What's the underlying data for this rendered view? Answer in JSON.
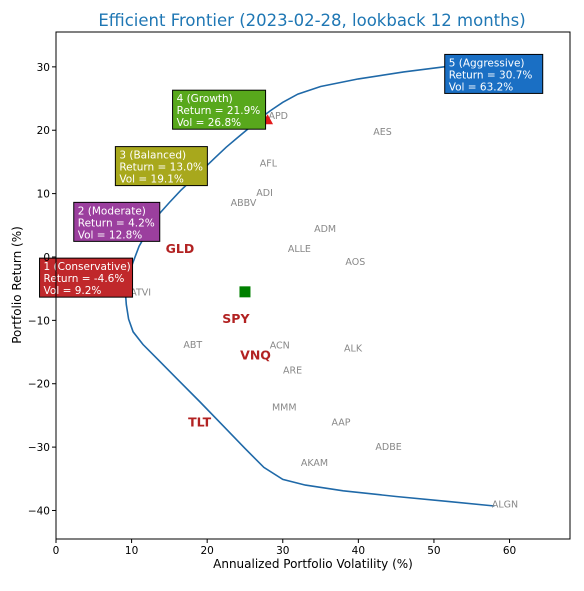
{
  "chart_data": {
    "type": "scatter",
    "title": "Efficient Frontier (2023-02-28, lookback 12 months)",
    "xlabel": "Annualized Portfolio Volatility (%)",
    "ylabel": "Portfolio Return (%)",
    "xlim": [
      0,
      68
    ],
    "ylim": [
      -44.5,
      35.5
    ],
    "xticks": [
      0,
      10,
      20,
      30,
      40,
      50,
      60
    ],
    "yticks": [
      -40,
      -30,
      -20,
      -10,
      0,
      10,
      20,
      30
    ],
    "grid": false,
    "colors": {
      "title": "#1f77b4",
      "frontier": "#1f69a8",
      "stock_label": "#888888",
      "etf_label": "#b22222",
      "marker_center": "#008000",
      "growth_triangle": "#e31a1c"
    },
    "frontier": {
      "x": [
        58.5,
        52,
        46,
        40,
        35,
        32,
        30,
        28.5,
        27,
        25.5,
        24,
        22.5,
        21,
        19.5,
        18,
        16.5,
        15,
        13.5,
        12.2,
        11,
        10.2,
        9.7,
        9.4,
        9.2,
        9.2,
        9.3,
        9.6,
        10.2,
        11.5,
        13.5,
        16,
        19,
        22,
        25,
        27.5,
        30,
        33,
        38,
        45,
        52,
        58
      ],
      "y": [
        30.8,
        30.1,
        29.2,
        28.1,
        26.9,
        25.7,
        24.4,
        23.2,
        21.9,
        20.3,
        18.8,
        17.3,
        15.6,
        13.9,
        12.2,
        10.5,
        8.6,
        6.6,
        4.2,
        1.7,
        -0.8,
        -2.5,
        -3.6,
        -4.6,
        -5.8,
        -7.5,
        -9.8,
        -11.8,
        -13.8,
        -16.2,
        -19.2,
        -22.8,
        -26.5,
        -30.2,
        -33.2,
        -35.1,
        -36.0,
        -36.9,
        -37.8,
        -38.6,
        -39.3
      ]
    },
    "stocks": [
      {
        "label": "APD",
        "x": 29.4,
        "y": 22.3
      },
      {
        "label": "AES",
        "x": 43.2,
        "y": 19.8
      },
      {
        "label": "AFL",
        "x": 28.1,
        "y": 14.8
      },
      {
        "label": "ADI",
        "x": 27.6,
        "y": 10.2
      },
      {
        "label": "ABBV",
        "x": 24.8,
        "y": 8.6
      },
      {
        "label": "ADM",
        "x": 35.6,
        "y": 4.5
      },
      {
        "label": "ALLE",
        "x": 32.2,
        "y": 1.3
      },
      {
        "label": "AOS",
        "x": 39.6,
        "y": -0.7
      },
      {
        "label": "ATVI",
        "x": 11.2,
        "y": -5.5
      },
      {
        "label": "ABT",
        "x": 18.1,
        "y": -13.8
      },
      {
        "label": "ACN",
        "x": 29.6,
        "y": -13.9
      },
      {
        "label": "ALK",
        "x": 39.3,
        "y": -14.4
      },
      {
        "label": "ARE",
        "x": 31.3,
        "y": -17.8
      },
      {
        "label": "MMM",
        "x": 30.2,
        "y": -23.7
      },
      {
        "label": "AAP",
        "x": 37.7,
        "y": -26.0
      },
      {
        "label": "ADBE",
        "x": 44.0,
        "y": -29.9
      },
      {
        "label": "AKAM",
        "x": 34.2,
        "y": -32.4
      },
      {
        "label": "ALGN",
        "x": 59.4,
        "y": -39.0
      }
    ],
    "etfs": [
      {
        "label": "GLD",
        "x": 16.4,
        "y": 1.3
      },
      {
        "label": "SPY",
        "x": 23.8,
        "y": -9.7
      },
      {
        "label": "VNQ",
        "x": 26.4,
        "y": -15.5
      },
      {
        "label": "TLT",
        "x": 19.0,
        "y": -26.0
      }
    ],
    "center_marker": {
      "x": 25.0,
      "y": -5.5
    },
    "portfolios": [
      {
        "name": "1 (Conservative)",
        "return_text": "Return = -4.6%",
        "vol_text": "Vol = 9.2%",
        "x": 9.2,
        "y": -4.6,
        "marker": "circle",
        "color": "#c0282b"
      },
      {
        "name": "2 (Moderate)",
        "return_text": "Return = 4.2%",
        "vol_text": "Vol = 12.8%",
        "x": 12.8,
        "y": 4.2,
        "marker": "x",
        "color": "#9b3f9e"
      },
      {
        "name": "3 (Balanced)",
        "return_text": "Return = 13.0%",
        "vol_text": "Vol = 19.1%",
        "x": 19.1,
        "y": 13.0,
        "marker": "x",
        "color": "#a8a81c"
      },
      {
        "name": "4 (Growth)",
        "return_text": "Return = 21.9%",
        "vol_text": "Vol = 26.8%",
        "x": 26.8,
        "y": 21.9,
        "marker": "x",
        "color": "#58a81c"
      },
      {
        "name": "5 (Aggressive)",
        "return_text": "Return = 30.7%",
        "vol_text": "Vol = 63.2%",
        "x": 63.2,
        "y": 30.7,
        "marker": "circle",
        "color": "#1a6fc4"
      }
    ]
  }
}
